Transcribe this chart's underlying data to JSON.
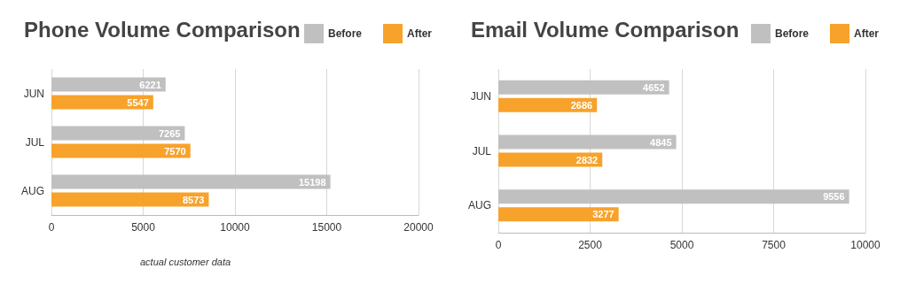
{
  "chart_data": [
    {
      "type": "bar",
      "title": "Phone Volume Comparison",
      "orientation": "horizontal",
      "categories": [
        "JUN",
        "JUL",
        "AUG"
      ],
      "series": [
        {
          "name": "Before",
          "color": "#c0c0c0",
          "values": [
            6221,
            7265,
            15198
          ]
        },
        {
          "name": "After",
          "color": "#f7a22b",
          "values": [
            5547,
            7570,
            8573
          ]
        }
      ],
      "xlim": [
        0,
        20000
      ],
      "xticks": [
        0,
        5000,
        10000,
        15000,
        20000
      ],
      "grid": "x",
      "legend": "top right",
      "data_labels": true,
      "annotations": [
        "actual customer data"
      ]
    },
    {
      "type": "bar",
      "title": "Email Volume Comparison",
      "orientation": "horizontal",
      "categories": [
        "JUN",
        "JUL",
        "AUG"
      ],
      "series": [
        {
          "name": "Before",
          "color": "#c0c0c0",
          "values": [
            4652,
            4845,
            9556
          ]
        },
        {
          "name": "After",
          "color": "#f7a22b",
          "values": [
            2686,
            2832,
            3277
          ]
        }
      ],
      "xlim": [
        0,
        10000
      ],
      "xticks": [
        0,
        2500,
        5000,
        7500,
        10000
      ],
      "grid": "x",
      "legend": "top right",
      "data_labels": true
    }
  ]
}
